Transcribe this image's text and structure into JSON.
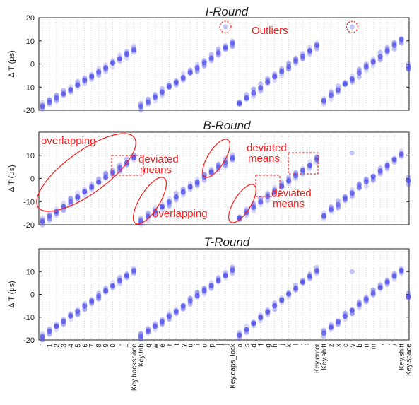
{
  "chart_data": {
    "type": "scatter",
    "ylabel": "Δ T (μs)",
    "ylim": [
      -20,
      20
    ],
    "y_ticks": [
      -20,
      -10,
      0,
      10,
      20
    ],
    "keys": [
      "`",
      "1",
      "2",
      "3",
      "4",
      "5",
      "6",
      "7",
      "8",
      "9",
      "0",
      "-",
      "=",
      "Key.backspace",
      "Key.tab",
      "q",
      "w",
      "e",
      "r",
      "t",
      "y",
      "u",
      "i",
      "o",
      "p",
      "[",
      "]",
      "Key.caps_lock",
      "a",
      "s",
      "d",
      "f",
      "g",
      "h",
      "j",
      "k",
      "l",
      ";",
      "'",
      "Key.enter",
      "Key.shift",
      "z",
      "x",
      "c",
      "v",
      "b",
      "n",
      "m",
      ",",
      ".",
      "/",
      "Key.shift",
      "Key.space"
    ],
    "panels": [
      {
        "title": "I-Round",
        "y_ticks": [
          -20,
          -10,
          0,
          10,
          20
        ],
        "segments": [
          {
            "start": 0,
            "end": 13,
            "y_start": -18.5,
            "y_end": 6.0
          },
          {
            "start": 14,
            "end": 27,
            "y_start": -18.5,
            "y_end": 9.0
          },
          {
            "start": 28,
            "end": 39,
            "y_start": -17.0,
            "y_end": 8.0
          },
          {
            "start": 40,
            "end": 51,
            "y_start": -16.0,
            "y_end": 10.5
          },
          {
            "start": 52,
            "end": 52,
            "y_start": -1.0,
            "y_end": -1.0
          }
        ],
        "outliers": [
          {
            "key": "]",
            "y": 16
          },
          {
            "key": "v",
            "y": 16
          }
        ],
        "annotations": [
          {
            "type": "circle",
            "key": "]",
            "y": 16,
            "label": ""
          },
          {
            "type": "circle",
            "key": "v",
            "y": 16,
            "label": ""
          },
          {
            "type": "text",
            "label": "Outliers",
            "key": "e",
            "y": 15
          }
        ]
      },
      {
        "title": "B-Round",
        "y_ticks": [
          -20,
          -10,
          0,
          10
        ],
        "segments": [
          {
            "start": 0,
            "end": 13,
            "y_start": -18.5,
            "y_end": 9.0
          },
          {
            "start": 14,
            "end": 27,
            "y_start": -18.5,
            "y_end": 9.0
          },
          {
            "start": 28,
            "end": 39,
            "y_start": -17.0,
            "y_end": 8.0
          },
          {
            "start": 40,
            "end": 51,
            "y_start": -16.0,
            "y_end": 10.5
          },
          {
            "start": 52,
            "end": 52,
            "y_start": -1.0,
            "y_end": -1.0
          }
        ],
        "outliers": [
          {
            "key": "v",
            "y": 11
          }
        ],
        "annotations": [
          {
            "type": "text",
            "label": "overlapping"
          },
          {
            "type": "text",
            "label": "deviated\nmeans"
          },
          {
            "type": "text",
            "label": "overlapping"
          },
          {
            "type": "text",
            "label": "deviated\nmeans"
          },
          {
            "type": "text",
            "label": "deviated\nmeans"
          }
        ]
      },
      {
        "title": "T-Round",
        "y_ticks": [
          -20,
          -10,
          0,
          10
        ],
        "segments": [
          {
            "start": 0,
            "end": 13,
            "y_start": -18.5,
            "y_end": 10.5
          },
          {
            "start": 14,
            "end": 27,
            "y_start": -18.5,
            "y_end": 10.5
          },
          {
            "start": 28,
            "end": 39,
            "y_start": -18.0,
            "y_end": 10.5
          },
          {
            "start": 40,
            "end": 51,
            "y_start": -17.0,
            "y_end": 10.5
          },
          {
            "start": 52,
            "end": 52,
            "y_start": -1.0,
            "y_end": -1.0
          }
        ],
        "outliers": [
          {
            "key": "v",
            "y": 10
          }
        ],
        "annotations": []
      }
    ],
    "colors": {
      "point": "#4a4ae8",
      "annotation": "#ff1a1a",
      "axis": "#222222",
      "grid": "#bdbdbd"
    }
  }
}
